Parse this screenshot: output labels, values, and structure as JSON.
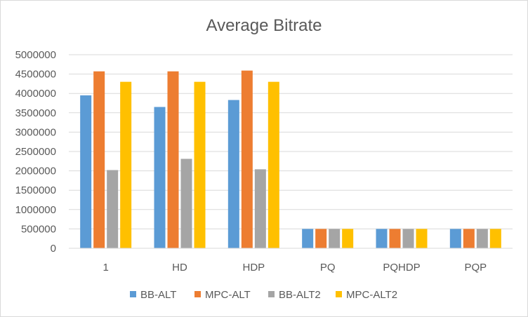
{
  "chart_data": {
    "type": "bar",
    "title": "Average Bitrate",
    "xlabel": "",
    "ylabel": "",
    "categories": [
      "1",
      "HD",
      "HDP",
      "PQ",
      "PQHDP",
      "PQP"
    ],
    "ylim": [
      0,
      5000000
    ],
    "yticks": [
      0,
      500000,
      1000000,
      1500000,
      2000000,
      2500000,
      3000000,
      3500000,
      4000000,
      4500000,
      5000000
    ],
    "grid": true,
    "legend_position": "bottom",
    "series": [
      {
        "name": "BB-ALT",
        "color": "#5b9bd5",
        "values": [
          3950000,
          3650000,
          3830000,
          500000,
          500000,
          500000
        ]
      },
      {
        "name": "MPC-ALT",
        "color": "#ed7d31",
        "values": [
          4570000,
          4570000,
          4590000,
          500000,
          500000,
          500000
        ]
      },
      {
        "name": "BB-ALT2",
        "color": "#a5a5a5",
        "values": [
          2020000,
          2310000,
          2040000,
          500000,
          500000,
          500000
        ]
      },
      {
        "name": "MPC-ALT2",
        "color": "#ffc000",
        "values": [
          4300000,
          4300000,
          4300000,
          500000,
          500000,
          500000
        ]
      }
    ]
  }
}
